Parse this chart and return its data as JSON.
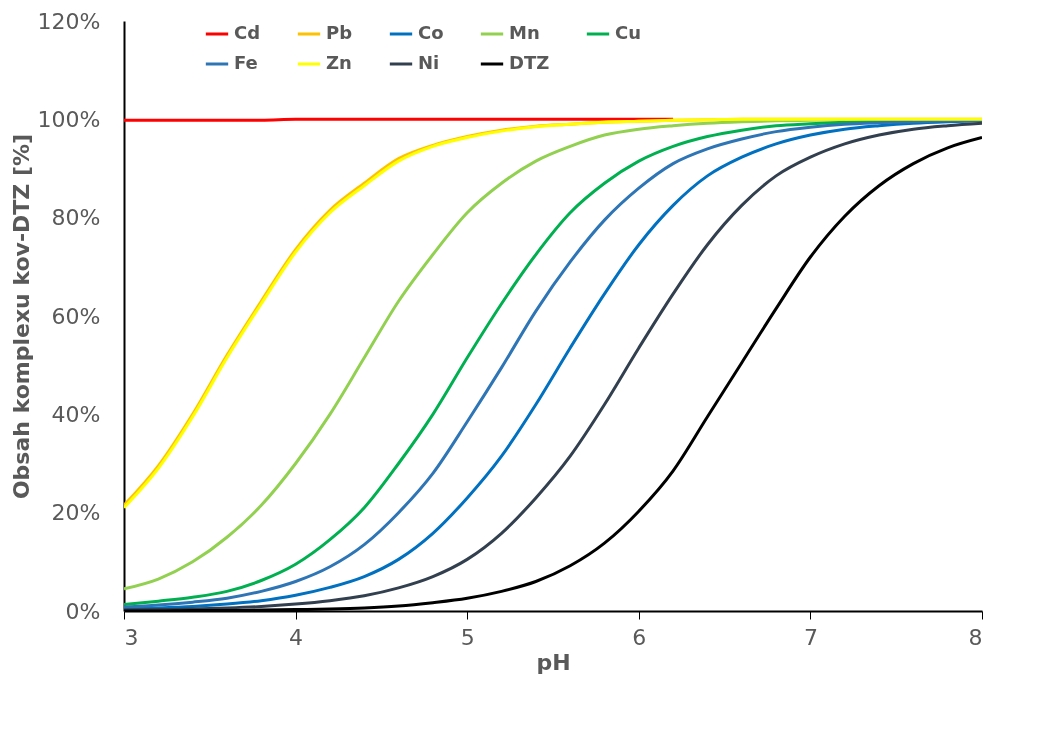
{
  "chart_data": {
    "type": "line",
    "xlabel": "pH",
    "ylabel": "Obsah  komplexu kov-DTZ [%]",
    "x": [
      3,
      3.2,
      3.4,
      3.6,
      3.8,
      4,
      4.2,
      4.4,
      4.6,
      4.8,
      5,
      5.2,
      5.4,
      5.6,
      5.8,
      6,
      6.2,
      6.4,
      6.6,
      6.8,
      7,
      7.2,
      7.4,
      7.6,
      7.8,
      8
    ],
    "xlim": [
      3,
      8
    ],
    "xticks": [
      3,
      4,
      5,
      6,
      7,
      8
    ],
    "ylim": [
      0,
      120
    ],
    "yticks": [
      {
        "value": 0,
        "label": "0%"
      },
      {
        "value": 20,
        "label": "20%"
      },
      {
        "value": 40,
        "label": "40%"
      },
      {
        "value": 60,
        "label": "60%"
      },
      {
        "value": 80,
        "label": "80%"
      },
      {
        "value": 100,
        "label": "100%"
      },
      {
        "value": 120,
        "label": "120%"
      }
    ],
    "grid": false,
    "legend": "top",
    "marker": "none",
    "line_style": "solid",
    "series": [
      {
        "name": "Cd",
        "color": "#ff0000",
        "values": [
          99.8,
          99.8,
          99.8,
          99.8,
          99.8,
          100,
          100,
          100,
          100,
          100,
          100,
          100,
          100,
          100,
          100,
          100,
          100,
          null,
          null,
          null,
          null,
          null,
          null,
          null,
          null,
          null
        ]
      },
      {
        "name": "Pb",
        "color": "#ffc000",
        "values": [
          21.5,
          29.5,
          40,
          52,
          63,
          73.5,
          81.5,
          87,
          92,
          94.7,
          96.5,
          97.8,
          98.6,
          99,
          99.4,
          99.6,
          99.8,
          99.9,
          100,
          100,
          100,
          100,
          100,
          100,
          100,
          100
        ]
      },
      {
        "name": "Co",
        "color": "#0070c0",
        "values": [
          0.4,
          0.6,
          0.9,
          1.4,
          2.1,
          3.2,
          4.8,
          7,
          10.5,
          15.8,
          23,
          31.5,
          42,
          53.5,
          64.5,
          74.5,
          82.5,
          88.5,
          92.3,
          95,
          96.8,
          98,
          98.7,
          99.2,
          99.5,
          99.7
        ]
      },
      {
        "name": "Mn",
        "color": "#92d050",
        "values": [
          4.5,
          6.5,
          10,
          15,
          21.5,
          30,
          40,
          51.5,
          63,
          72.5,
          81,
          87,
          91.5,
          94.5,
          96.8,
          98,
          98.7,
          99.2,
          99.5,
          99.7,
          99.8,
          99.9,
          null,
          null,
          null,
          null
        ]
      },
      {
        "name": "Cu",
        "color": "#00b050",
        "values": [
          1.3,
          2,
          2.8,
          4,
          6.2,
          9.5,
          14.5,
          21,
          30,
          40,
          51.5,
          62.5,
          72.5,
          81,
          87,
          91.5,
          94.5,
          96.5,
          97.8,
          98.7,
          99.1,
          99.4,
          99.6,
          99.8,
          null,
          null
        ]
      },
      {
        "name": "Fe",
        "color": "#2e75b6",
        "values": [
          0.8,
          1.2,
          1.8,
          2.6,
          4,
          6,
          9,
          13.5,
          20,
          28,
          38.5,
          49.5,
          61,
          71,
          79.5,
          86,
          91,
          94,
          96,
          97.5,
          98.4,
          99,
          99.3,
          99.5,
          99.7,
          99.8
        ]
      },
      {
        "name": "Zn",
        "color": "#ffff00",
        "values": [
          21,
          29,
          39.5,
          51.5,
          62.5,
          73,
          81,
          86.5,
          91.5,
          94.5,
          96.3,
          97.6,
          98.5,
          99,
          99.4,
          99.6,
          99.8,
          99.9,
          100,
          100,
          100,
          100,
          100,
          100,
          100,
          100
        ]
      },
      {
        "name": "Ni",
        "color": "#323f4f",
        "values": [
          0.2,
          0.3,
          0.4,
          0.6,
          0.9,
          1.4,
          2.1,
          3.1,
          4.7,
          7,
          10.5,
          15.8,
          23,
          31.5,
          42,
          53.5,
          64.5,
          74.5,
          82.5,
          88.5,
          92.3,
          95,
          96.8,
          98,
          98.7,
          99.2
        ]
      },
      {
        "name": "DTZ",
        "color": "#000000",
        "values": [
          0,
          0,
          0.1,
          0.1,
          0.2,
          0.3,
          0.4,
          0.6,
          1,
          1.7,
          2.6,
          4,
          6,
          9.2,
          13.8,
          20.3,
          28.5,
          39.5,
          50.5,
          61.5,
          72,
          80.3,
          86.5,
          91,
          94.2,
          96.3
        ]
      }
    ]
  }
}
